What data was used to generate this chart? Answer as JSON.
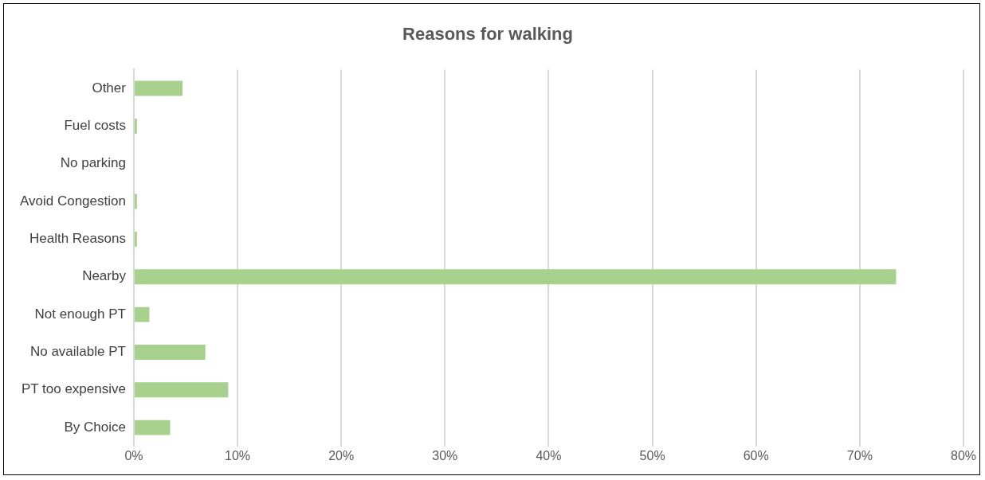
{
  "chart_data": {
    "type": "bar",
    "orientation": "horizontal",
    "title": "Reasons for walking",
    "categories": [
      "Other",
      "Fuel costs",
      "No parking",
      "Avoid Congestion",
      "Health Reasons",
      "Nearby",
      "Not enough PT",
      "No available PT",
      "PT too expensive",
      "By Choice"
    ],
    "values": [
      4.7,
      0.3,
      null,
      0.3,
      0.3,
      73.5,
      1.5,
      6.9,
      9.1,
      3.5
    ],
    "color": "#a9d18e",
    "xlim": [
      0,
      80
    ],
    "xticks": [
      {
        "value": 0,
        "label": "0%"
      },
      {
        "value": 10,
        "label": "10%"
      },
      {
        "value": 20,
        "label": "20%"
      },
      {
        "value": 30,
        "label": "30%"
      },
      {
        "value": 40,
        "label": "40%"
      },
      {
        "value": 50,
        "label": "50%"
      },
      {
        "value": 60,
        "label": "60%"
      },
      {
        "value": 70,
        "label": "70%"
      },
      {
        "value": 80,
        "label": "80%"
      }
    ],
    "grid": "x",
    "legend": false
  }
}
